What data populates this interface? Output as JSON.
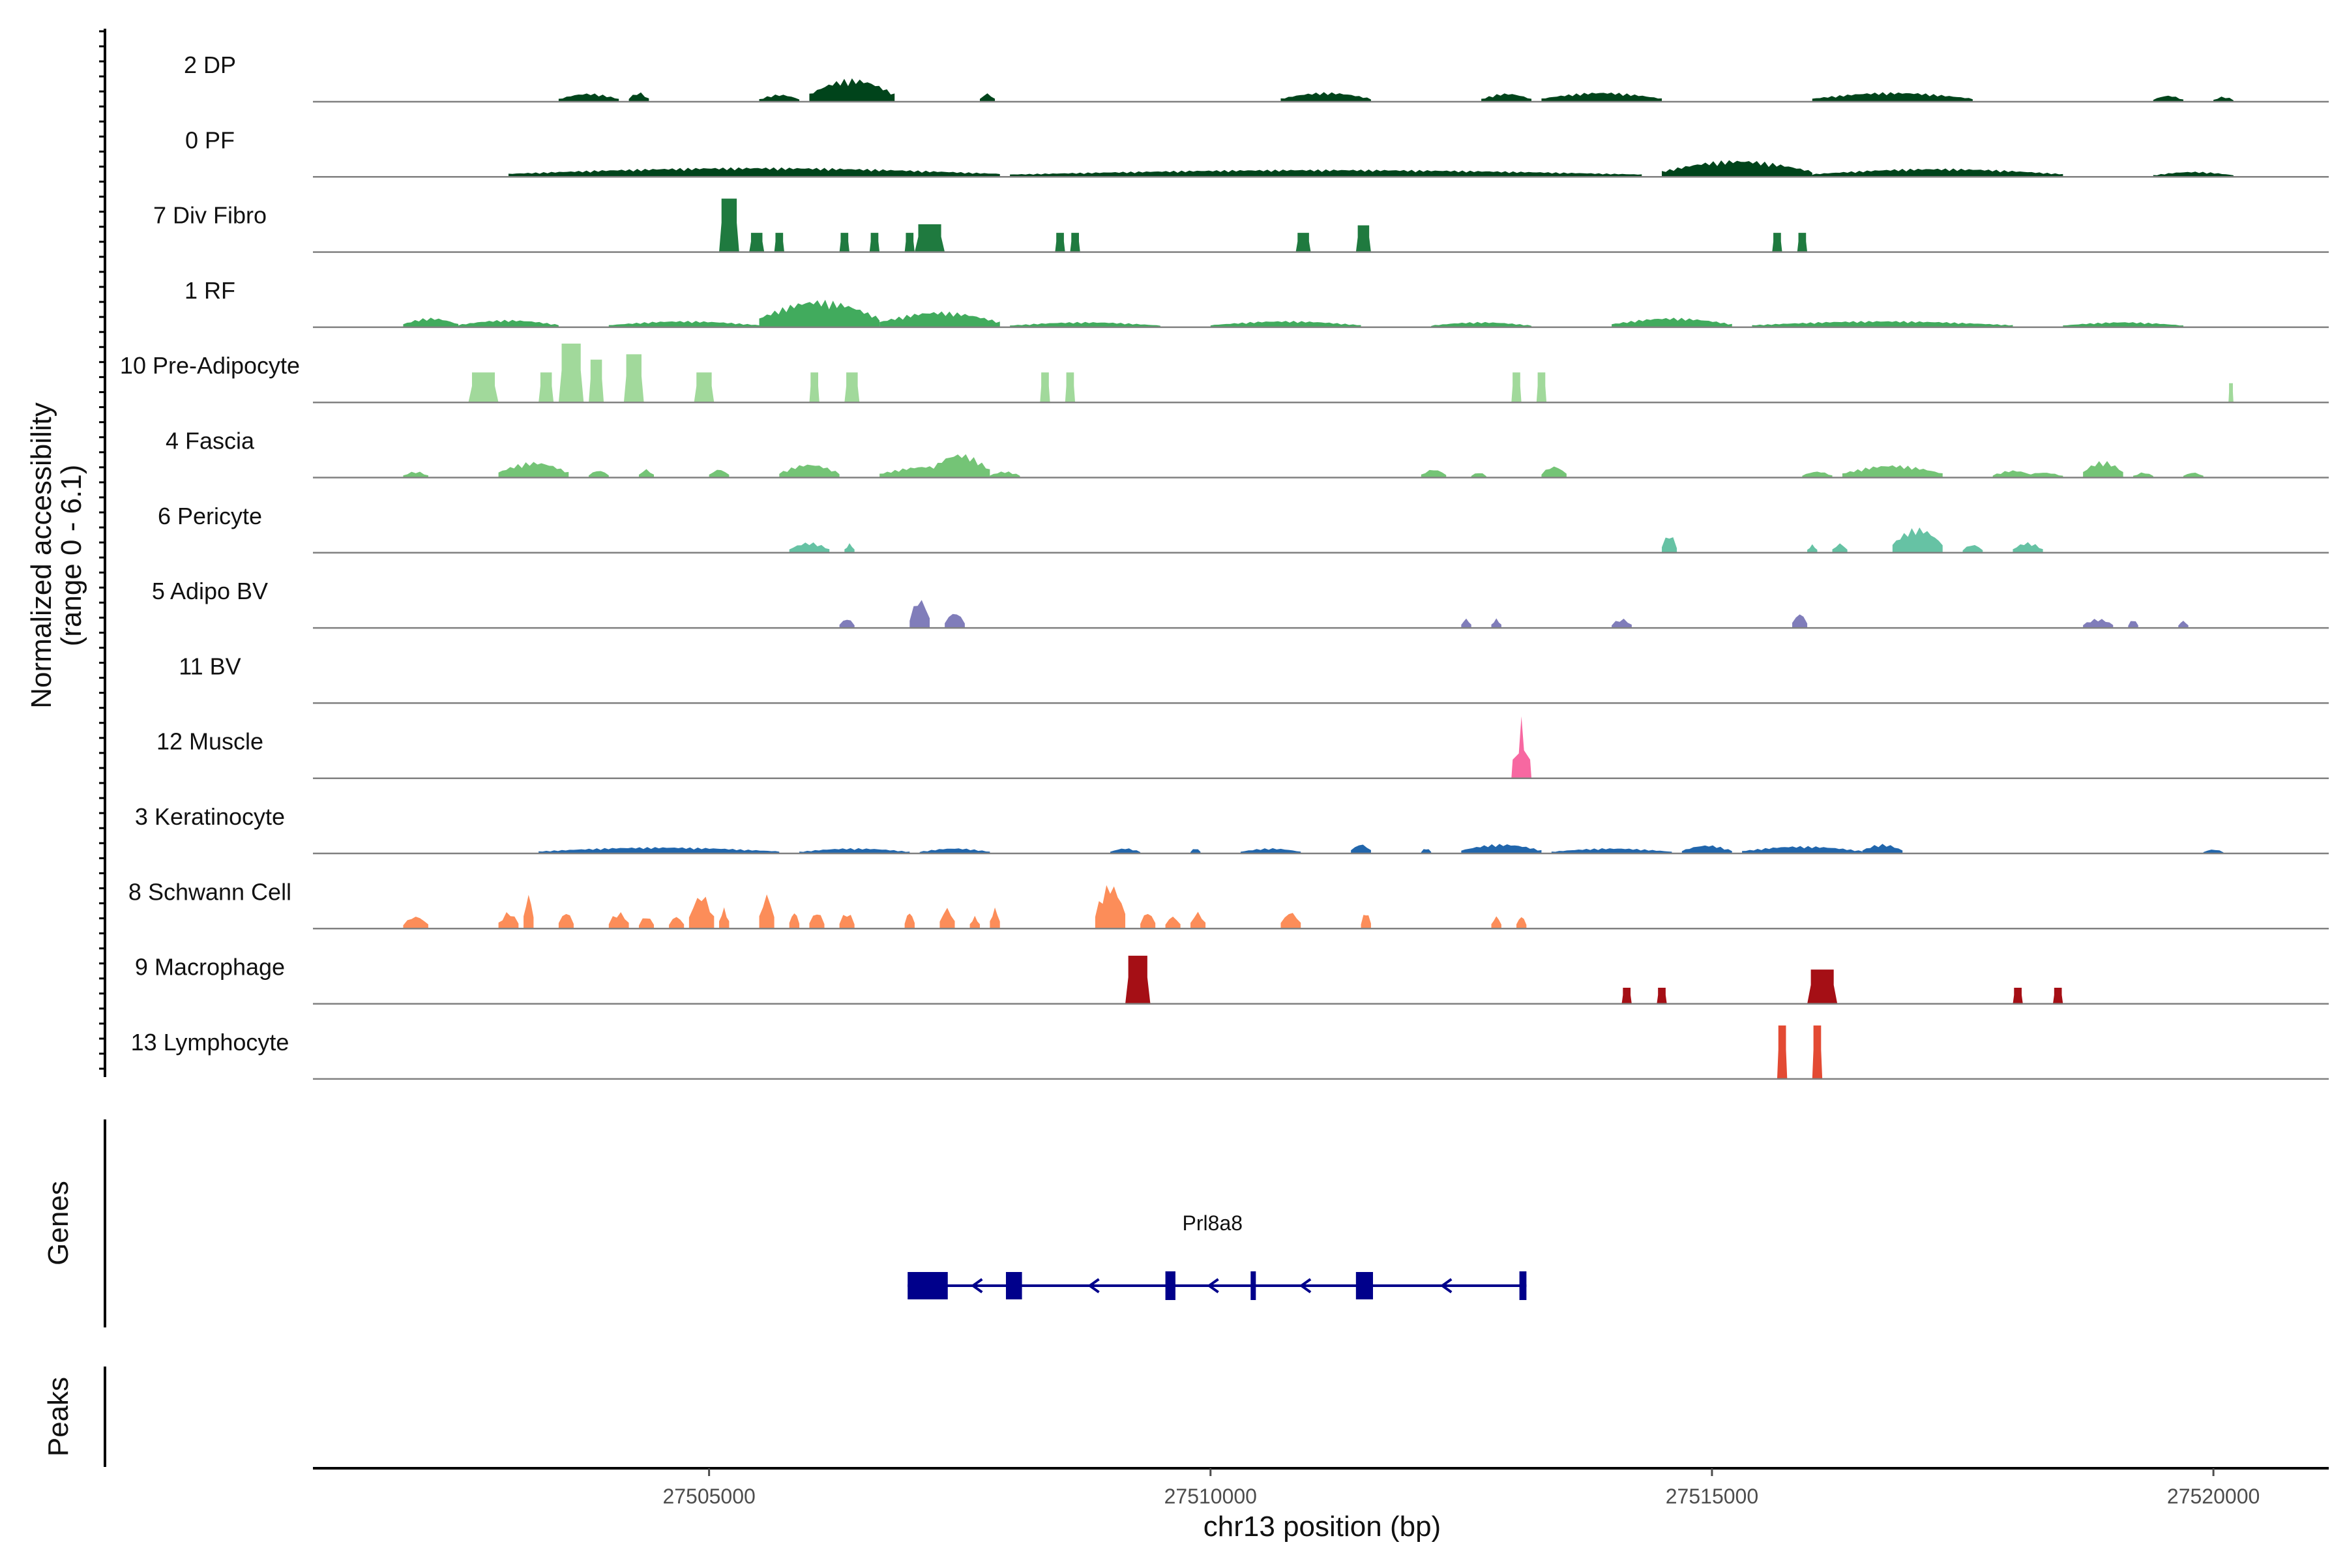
{
  "chart_data": {
    "type": "area",
    "title": "",
    "ylabel_line1": "Normalized accessibility",
    "ylabel_line2": "(range 0 - 6.1)",
    "yrange": [
      0,
      6.1
    ],
    "xlabel": "chr13 position (bp)",
    "xlim": [
      27501050,
      27521150
    ],
    "xticks": [
      27505000,
      27510000,
      27515000,
      27520000
    ],
    "xtick_labels": [
      "27505000",
      "27510000",
      "27515000",
      "27520000"
    ],
    "genes_panel_label": "Genes",
    "peaks_panel_label": "Peaks",
    "tracks": [
      {
        "name": "2 DP",
        "color": "#00441b",
        "kind": "smooth",
        "segments": [
          [
            27503500,
            27504100,
            0.8
          ],
          [
            27504200,
            27504400,
            0.9
          ],
          [
            27505500,
            27505900,
            0.7
          ],
          [
            27506000,
            27506850,
            2.2
          ],
          [
            27507700,
            27507850,
            0.8
          ],
          [
            27510700,
            27511600,
            0.9
          ],
          [
            27512700,
            27513200,
            0.8
          ],
          [
            27513300,
            27514500,
            0.9
          ],
          [
            27516000,
            27517600,
            0.9
          ],
          [
            27519400,
            27519700,
            0.6
          ],
          [
            27520000,
            27520200,
            0.5
          ]
        ]
      },
      {
        "name": "0 PF",
        "color": "#00441b",
        "kind": "smooth",
        "segments": [
          [
            27503000,
            27507900,
            0.9
          ],
          [
            27508000,
            27514300,
            0.7
          ],
          [
            27514500,
            27516000,
            1.6
          ],
          [
            27516000,
            27518500,
            0.8
          ],
          [
            27519400,
            27520200,
            0.5
          ]
        ]
      },
      {
        "name": "7 Div Fibro",
        "color": "#1f7a3f",
        "kind": "blocks",
        "segments": [
          [
            27505100,
            27505300,
            5.0
          ],
          [
            27505400,
            27505550,
            1.8
          ],
          [
            27505650,
            27505750,
            1.8
          ],
          [
            27506300,
            27506400,
            1.8
          ],
          [
            27506600,
            27506700,
            1.8
          ],
          [
            27506950,
            27507050,
            1.8
          ],
          [
            27507050,
            27507350,
            2.6
          ],
          [
            27508450,
            27508550,
            1.8
          ],
          [
            27508600,
            27508700,
            1.8
          ],
          [
            27510850,
            27511000,
            1.8
          ],
          [
            27511450,
            27511600,
            2.5
          ],
          [
            27515600,
            27515700,
            1.8
          ],
          [
            27515850,
            27515950,
            1.8
          ]
        ]
      },
      {
        "name": "1 RF",
        "color": "#41ab5d",
        "kind": "smooth",
        "segments": [
          [
            27501950,
            27502500,
            0.9
          ],
          [
            27502500,
            27503500,
            0.7
          ],
          [
            27504000,
            27505500,
            0.6
          ],
          [
            27505500,
            27506700,
            2.6
          ],
          [
            27506700,
            27507900,
            1.5
          ],
          [
            27508000,
            27509500,
            0.5
          ],
          [
            27510000,
            27511500,
            0.6
          ],
          [
            27512200,
            27513200,
            0.5
          ],
          [
            27514000,
            27515200,
            0.9
          ],
          [
            27515400,
            27518000,
            0.6
          ],
          [
            27518500,
            27519700,
            0.5
          ]
        ]
      },
      {
        "name": "10 Pre-Adipocyte",
        "color": "#a1d99b",
        "kind": "blocks",
        "segments": [
          [
            27502600,
            27502900,
            2.8
          ],
          [
            27503300,
            27503450,
            2.8
          ],
          [
            27503500,
            27503750,
            5.5
          ],
          [
            27503800,
            27503950,
            4.0
          ],
          [
            27504150,
            27504350,
            4.5
          ],
          [
            27504850,
            27505050,
            2.8
          ],
          [
            27506000,
            27506100,
            2.8
          ],
          [
            27506350,
            27506500,
            2.8
          ],
          [
            27508300,
            27508400,
            2.8
          ],
          [
            27508550,
            27508650,
            2.8
          ],
          [
            27513000,
            27513100,
            2.8
          ],
          [
            27513250,
            27513350,
            2.8
          ],
          [
            27520150,
            27520200,
            1.8
          ]
        ]
      },
      {
        "name": "4 Fascia",
        "color": "#74c476",
        "kind": "smooth",
        "segments": [
          [
            27501950,
            27502200,
            0.6
          ],
          [
            27502900,
            27503600,
            1.5
          ],
          [
            27503800,
            27504000,
            0.7
          ],
          [
            27504300,
            27504450,
            0.8
          ],
          [
            27505000,
            27505200,
            0.8
          ],
          [
            27505700,
            27506300,
            1.3
          ],
          [
            27506700,
            27507700,
            1.1
          ],
          [
            27507200,
            27507800,
            2.3
          ],
          [
            27507800,
            27508100,
            0.6
          ],
          [
            27512100,
            27512350,
            0.8
          ],
          [
            27512600,
            27512750,
            0.5
          ],
          [
            27513300,
            27513550,
            1.1
          ],
          [
            27515900,
            27516200,
            0.6
          ],
          [
            27516300,
            27517300,
            1.2
          ],
          [
            27517800,
            27518200,
            0.7
          ],
          [
            27518100,
            27518500,
            0.5
          ],
          [
            27518700,
            27519100,
            1.6
          ],
          [
            27519200,
            27519400,
            0.5
          ],
          [
            27519700,
            27519900,
            0.5
          ]
        ]
      },
      {
        "name": "6 Pericyte",
        "color": "#66c2a4",
        "kind": "smooth",
        "segments": [
          [
            27505800,
            27506200,
            1.0
          ],
          [
            27506350,
            27506450,
            0.9
          ],
          [
            27514500,
            27514650,
            1.8
          ],
          [
            27515950,
            27516050,
            0.8
          ],
          [
            27516200,
            27516350,
            0.9
          ],
          [
            27516800,
            27517300,
            2.4
          ],
          [
            27517500,
            27517700,
            0.8
          ],
          [
            27518000,
            27518300,
            1.0
          ]
        ]
      },
      {
        "name": "5 Adipo BV",
        "color": "#807dba",
        "kind": "smooth",
        "segments": [
          [
            27506300,
            27506450,
            0.9
          ],
          [
            27507000,
            27507200,
            2.8
          ],
          [
            27507350,
            27507550,
            1.5
          ],
          [
            27512500,
            27512600,
            0.9
          ],
          [
            27512800,
            27512900,
            0.9
          ],
          [
            27514000,
            27514200,
            0.9
          ],
          [
            27515800,
            27515950,
            1.4
          ],
          [
            27518700,
            27519000,
            0.9
          ],
          [
            27519150,
            27519250,
            0.8
          ],
          [
            27519650,
            27519750,
            0.7
          ]
        ]
      },
      {
        "name": "11 BV",
        "color": "#6a51a3",
        "kind": "smooth",
        "segments": []
      },
      {
        "name": "12 Muscle",
        "color": "#f768a1",
        "kind": "spike",
        "segments": [
          [
            27513000,
            27513200,
            5.8
          ]
        ]
      },
      {
        "name": "3 Keratinocyte",
        "color": "#2166ac",
        "kind": "smooth",
        "segments": [
          [
            27503300,
            27505700,
            0.6
          ],
          [
            27505900,
            27507000,
            0.5
          ],
          [
            27507100,
            27507800,
            0.5
          ],
          [
            27509000,
            27509300,
            0.5
          ],
          [
            27509800,
            27509900,
            0.5
          ],
          [
            27510300,
            27510900,
            0.5
          ],
          [
            27511400,
            27511600,
            0.9
          ],
          [
            27512100,
            27512200,
            0.5
          ],
          [
            27512500,
            27513300,
            0.9
          ],
          [
            27513400,
            27514600,
            0.5
          ],
          [
            27514700,
            27515200,
            0.8
          ],
          [
            27515300,
            27516500,
            0.7
          ],
          [
            27516500,
            27516900,
            0.9
          ],
          [
            27519900,
            27520100,
            0.4
          ]
        ]
      },
      {
        "name": "8 Schwann Cell",
        "color": "#fc8d59",
        "kind": "smooth",
        "segments": [
          [
            27501950,
            27502200,
            1.2
          ],
          [
            27502900,
            27503100,
            1.6
          ],
          [
            27503150,
            27503250,
            3.3
          ],
          [
            27503500,
            27503650,
            1.6
          ],
          [
            27504000,
            27504200,
            1.6
          ],
          [
            27504300,
            27504450,
            1.2
          ],
          [
            27504600,
            27504750,
            1.2
          ],
          [
            27504800,
            27505050,
            3.3
          ],
          [
            27505100,
            27505200,
            2.0
          ],
          [
            27505500,
            27505650,
            3.3
          ],
          [
            27505800,
            27505900,
            1.6
          ],
          [
            27506000,
            27506150,
            1.6
          ],
          [
            27506300,
            27506450,
            1.6
          ],
          [
            27506950,
            27507050,
            1.6
          ],
          [
            27507300,
            27507450,
            2.0
          ],
          [
            27507600,
            27507700,
            1.2
          ],
          [
            27507800,
            27507900,
            2.0
          ],
          [
            27508850,
            27509150,
            4.3
          ],
          [
            27509300,
            27509450,
            1.6
          ],
          [
            27509550,
            27509700,
            1.2
          ],
          [
            27509800,
            27509950,
            1.6
          ],
          [
            27510700,
            27510900,
            1.6
          ],
          [
            27511500,
            27511600,
            1.6
          ],
          [
            27512800,
            27512900,
            1.2
          ],
          [
            27513050,
            27513150,
            1.2
          ]
        ]
      },
      {
        "name": "9 Macrophage",
        "color": "#a50f15",
        "kind": "blocks",
        "segments": [
          [
            27509150,
            27509400,
            4.5
          ],
          [
            27514100,
            27514200,
            1.5
          ],
          [
            27514450,
            27514550,
            1.5
          ],
          [
            27515950,
            27516250,
            3.2
          ],
          [
            27518000,
            27518100,
            1.5
          ],
          [
            27518400,
            27518500,
            1.5
          ]
        ]
      },
      {
        "name": "13 Lymphocyte",
        "color": "#e34a33",
        "kind": "blocks",
        "segments": [
          [
            27515650,
            27515750,
            5.0
          ],
          [
            27516000,
            27516100,
            5.0
          ]
        ]
      }
    ],
    "gene": {
      "name": "Prl8a8",
      "strand": "-",
      "start": 27506980,
      "end": 27513150,
      "exons": [
        [
          27506980,
          27507380
        ],
        [
          27507960,
          27508120
        ],
        [
          27509550,
          27509650
        ],
        [
          27510400,
          27510440
        ],
        [
          27511450,
          27511620
        ],
        [
          27513080,
          27513150
        ]
      ],
      "color": "#00008b"
    },
    "peaks": []
  }
}
